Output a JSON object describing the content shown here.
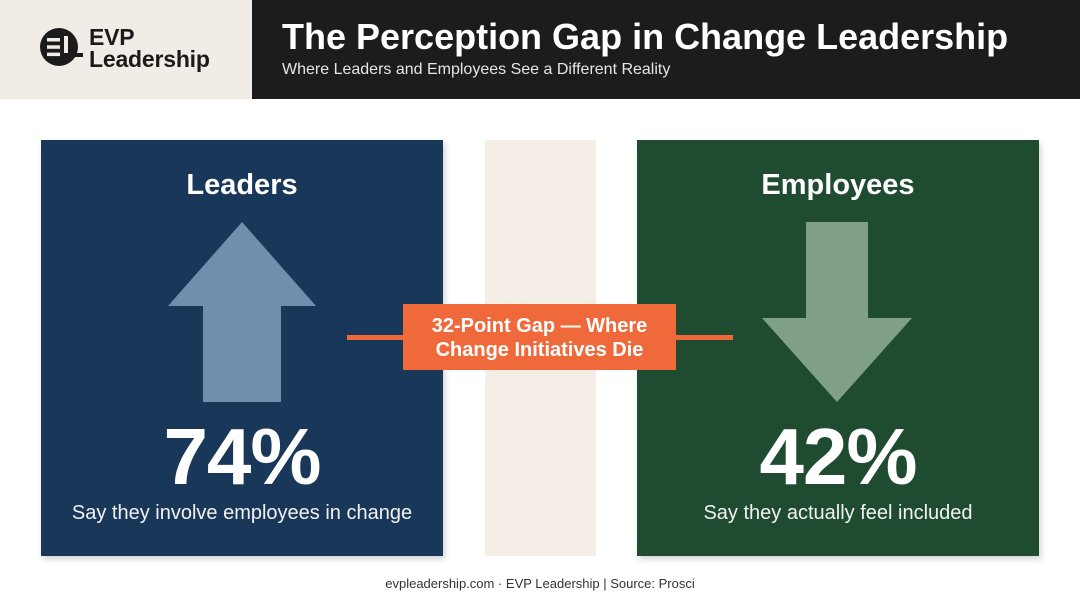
{
  "brand": {
    "logo_line1": "EVP",
    "logo_line2": "Leadership",
    "logo_icon": "evp-logo-icon"
  },
  "header": {
    "title": "The Perception Gap in Change Leadership",
    "subtitle": "Where Leaders and Employees See a Different Reality"
  },
  "leaders": {
    "title": "Leaders",
    "value": "74%",
    "caption": "Say they involve employees in change",
    "icon": "arrow-up-icon",
    "color": "#193759"
  },
  "employees": {
    "title": "Employees",
    "value": "42%",
    "caption": "Say they actually feel included",
    "icon": "arrow-down-icon",
    "color": "#1f4b30"
  },
  "gap": {
    "line1": "32-Point Gap — Where",
    "line2": "Change Initiatives Die",
    "color": "#f0693a"
  },
  "footer": {
    "text": "evpleadership.com · EVP Leadership | Source: Prosci"
  }
}
